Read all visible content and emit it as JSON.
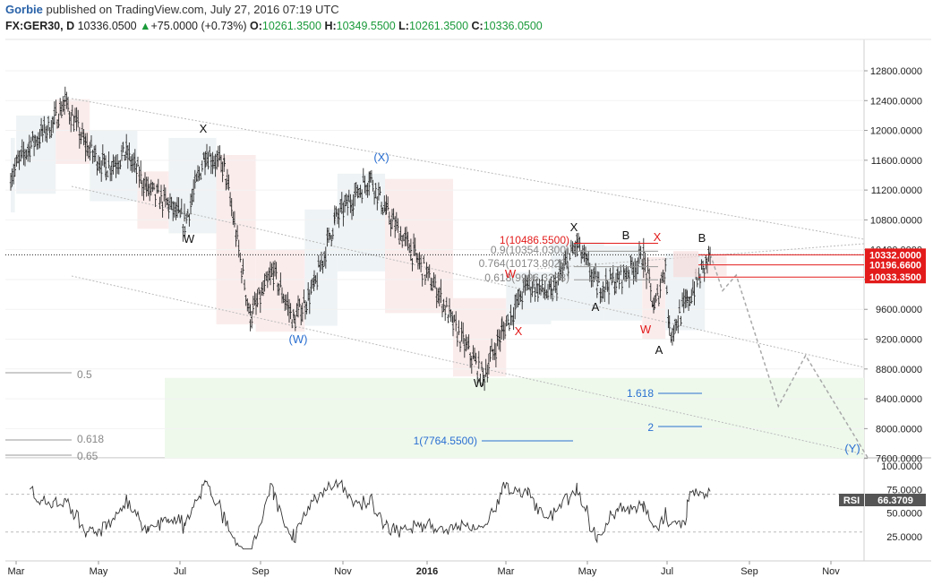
{
  "header": {
    "author": "Gorbie",
    "published": "published on TradingView.com, July 27, 2016 07:19 UTC",
    "symbol": "FX:GER30, D",
    "last": "10336.0500",
    "change_arrow": "▲",
    "change": "+75.0000 (+0.73%)",
    "o_label": "O:",
    "o": "10261.3500",
    "h_label": "H:",
    "h": "10349.5500",
    "l_label": "L:",
    "l": "10261.3500",
    "c_label": "C:",
    "c": "10336.0500"
  },
  "colors": {
    "up": "#1a9a3a",
    "price_box": "#e31b1b",
    "rsi_box": "#555555",
    "wave_black": "#111111",
    "wave_blue": "#2a6fd1",
    "wave_red": "#e31b1b",
    "fib_gray": "#888888"
  },
  "chart_data": [
    {
      "type": "line",
      "title": "FX:GER30, D",
      "x_axis_labels": [
        "Mar",
        "May",
        "Jul",
        "Sep",
        "Nov",
        "2016",
        "Mar",
        "May",
        "Jul",
        "Sep",
        "Nov"
      ],
      "y_ticks": [
        "12800.0000",
        "12400.0000",
        "12000.0000",
        "11600.0000",
        "11200.0000",
        "10800.0000",
        "10400.0000",
        "10000.0000",
        "9600.0000",
        "9200.0000",
        "8800.0000",
        "8400.0000",
        "8000.0000",
        "7600.0000"
      ],
      "ylim": [
        7520,
        13020
      ],
      "series_approx_closes": [
        [
          "2015-03-01",
          11400
        ],
        [
          "2015-03-15",
          11800
        ],
        [
          "2015-04-01",
          12100
        ],
        [
          "2015-04-10",
          12390
        ],
        [
          "2015-04-25",
          11800
        ],
        [
          "2015-05-10",
          11500
        ],
        [
          "2015-05-25",
          11700
        ],
        [
          "2015-06-10",
          11200
        ],
        [
          "2015-06-25",
          11000
        ],
        [
          "2015-07-07",
          10750
        ],
        [
          "2015-07-22",
          11700
        ],
        [
          "2015-08-05",
          11500
        ],
        [
          "2015-08-24",
          9500
        ],
        [
          "2015-09-10",
          10100
        ],
        [
          "2015-09-25",
          9450
        ],
        [
          "2015-10-10",
          9900
        ],
        [
          "2015-10-25",
          10800
        ],
        [
          "2015-11-20",
          11380
        ],
        [
          "2015-12-02",
          10900
        ],
        [
          "2015-12-20",
          10400
        ],
        [
          "2016-01-10",
          9800
        ],
        [
          "2016-01-20",
          9400
        ],
        [
          "2016-02-11",
          8700
        ],
        [
          "2016-02-25",
          9300
        ],
        [
          "2016-03-15",
          9950
        ],
        [
          "2016-04-01",
          9800
        ],
        [
          "2016-04-20",
          10480
        ],
        [
          "2016-05-05",
          9900
        ],
        [
          "2016-05-20",
          10000
        ],
        [
          "2016-06-08",
          10300
        ],
        [
          "2016-06-16",
          9600
        ],
        [
          "2016-06-24",
          10200
        ],
        [
          "2016-06-27",
          9270
        ],
        [
          "2016-07-10",
          9700
        ],
        [
          "2016-07-27",
          10336
        ]
      ],
      "price_labels": [
        "10332.0000",
        "10196.6600",
        "10033.3500"
      ],
      "wave_labels": [
        {
          "text": "X",
          "color": "black"
        },
        {
          "text": "W",
          "color": "black"
        },
        {
          "text": "(W)",
          "color": "blue"
        },
        {
          "text": "(X)",
          "color": "blue"
        },
        {
          "text": "W",
          "color": "black"
        },
        {
          "text": "X",
          "color": "red"
        },
        {
          "text": "W",
          "color": "red"
        },
        {
          "text": "X",
          "color": "black"
        },
        {
          "text": "B",
          "color": "black"
        },
        {
          "text": "A",
          "color": "black"
        },
        {
          "text": "X",
          "color": "red"
        },
        {
          "text": "W",
          "color": "red"
        },
        {
          "text": "A",
          "color": "black"
        },
        {
          "text": "B",
          "color": "black"
        },
        {
          "text": "(Y)",
          "color": "blue"
        }
      ],
      "fib_labels": [
        "1(10486.5500)",
        "0.9(10354.0300)",
        "0.764(10173.8028)",
        "0.618(9996.3238)",
        "0.5",
        "0.618",
        "0.65",
        "1.618",
        "2",
        "1(7764.5500)"
      ],
      "projection_path": [
        [
          10336,
          "2016-07-27"
        ],
        [
          9850,
          "2016-08-05"
        ],
        [
          10060,
          "2016-08-15"
        ],
        [
          8300,
          "2016-09-15"
        ],
        [
          8980,
          "2016-10-05"
        ],
        [
          7600,
          "2016-11-20"
        ]
      ]
    },
    {
      "type": "line",
      "title": "RSI",
      "label": "RSI",
      "value": "66.3709",
      "y_ticks": [
        "100.0000",
        "75.0000",
        "50.0000",
        "25.0000"
      ],
      "ylim": [
        0,
        100
      ],
      "levels": [
        70,
        30
      ]
    }
  ]
}
